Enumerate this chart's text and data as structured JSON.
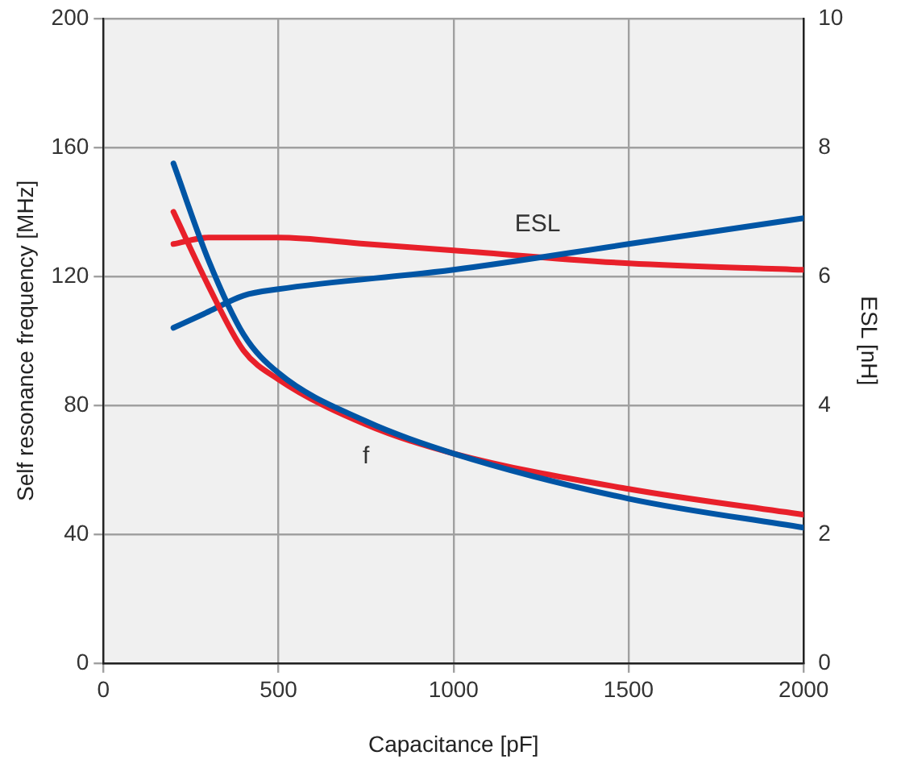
{
  "chart_data": {
    "type": "line",
    "xlabel": "Capacitance [pF]",
    "ylabel": "Self resonance frequency [MHz]",
    "y2label": "ESL [nH]",
    "xlim": [
      0,
      2000
    ],
    "xticks": [
      0,
      500,
      1000,
      1500,
      2000
    ],
    "ylim": [
      0,
      200
    ],
    "yticks": [
      0,
      40,
      80,
      120,
      160,
      200
    ],
    "y2lim": [
      0,
      10
    ],
    "y2ticks": [
      0,
      2,
      4,
      6,
      8,
      10
    ],
    "grid": true,
    "legend": false,
    "marker": "none",
    "line_style": "solid",
    "series": [
      {
        "color": "#0055a5",
        "x": [
          200,
          300,
          400,
          500,
          750,
          1000,
          1500,
          2000
        ],
        "values": [
          155,
          125,
          102,
          90,
          75,
          65,
          51,
          42
        ]
      },
      {
        "color": "#e8202a",
        "x": [
          200,
          300,
          400,
          500,
          750,
          1000,
          1500,
          2000
        ],
        "values": [
          140,
          117,
          97,
          88,
          74,
          65,
          54,
          46
        ]
      },
      {
        "color": "#0055a5",
        "axis": "y2",
        "x": [
          200,
          300,
          400,
          500,
          1000,
          1500,
          2000
        ],
        "values": [
          5.2,
          5.45,
          5.7,
          5.8,
          6.1,
          6.5,
          6.9
        ]
      },
      {
        "color": "#e8202a",
        "axis": "y2",
        "x": [
          200,
          300,
          500,
          750,
          1000,
          1500,
          2000
        ],
        "values": [
          6.5,
          6.6,
          6.6,
          6.5,
          6.4,
          6.2,
          6.1
        ]
      }
    ],
    "annotations": [
      "ESL",
      "f"
    ]
  }
}
